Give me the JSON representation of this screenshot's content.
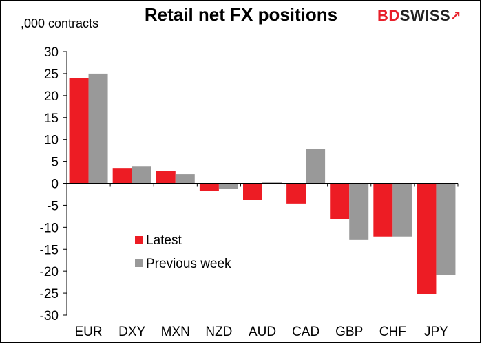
{
  "title": "Retail net FX positions",
  "logo": {
    "bd": "BD",
    "swiss": "SWISS",
    "mark": "↗"
  },
  "chart_data": {
    "type": "bar",
    "title": "Retail net FX positions",
    "ylabel": ",000 contracts",
    "xlabel": "",
    "categories": [
      "EUR",
      "DXY",
      "MXN",
      "NZD",
      "AUD",
      "CAD",
      "GBP",
      "CHF",
      "JPY"
    ],
    "series": [
      {
        "name": "Latest",
        "color": "#ed1c24",
        "values": [
          24,
          3.5,
          2.8,
          -1.8,
          -3.8,
          -4.6,
          -8.2,
          -12.1,
          -25.2
        ]
      },
      {
        "name": "Previous week",
        "color": "#999999",
        "values": [
          25,
          3.8,
          2.1,
          -1.2,
          0.2,
          7.9,
          -12.9,
          -12.1,
          -20.8
        ]
      }
    ],
    "ylim": [
      -30,
      30
    ],
    "yticks": [
      30,
      25,
      20,
      15,
      10,
      5,
      0,
      -5,
      -10,
      -15,
      -20,
      -25,
      -30
    ],
    "grid": false,
    "legend": "lower-left"
  }
}
